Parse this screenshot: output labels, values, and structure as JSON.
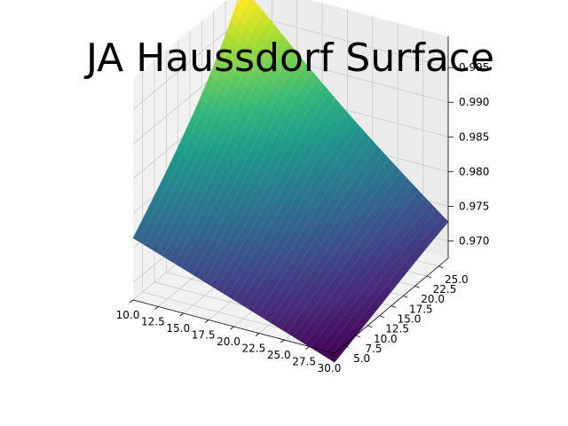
{
  "chart_data": {
    "type": "surface",
    "title": "JA Haussdorf Surface",
    "xlabel": "",
    "ylabel": "",
    "zlabel": "",
    "colormap": "viridis",
    "grid": true,
    "x": {
      "range": [
        10.0,
        30.0
      ],
      "ticks": [
        10.0,
        12.5,
        15.0,
        17.5,
        20.0,
        22.5,
        25.0,
        27.5,
        30.0
      ],
      "tick_labels": [
        "10.0",
        "12.5",
        "15.0",
        "17.5",
        "20.0",
        "22.5",
        "25.0",
        "27.5",
        "30.0"
      ]
    },
    "y": {
      "range": [
        3.0,
        27.0
      ],
      "ticks": [
        5.0,
        7.5,
        10.0,
        12.5,
        15.0,
        17.5,
        20.0,
        22.5,
        25.0
      ],
      "tick_labels": [
        "5.0",
        "7.5",
        "10.0",
        "12.5",
        "15.0",
        "17.5",
        "20.0",
        "22.5",
        "25.0"
      ]
    },
    "z": {
      "range": [
        0.9675,
        0.9995
      ],
      "ticks": [
        0.97,
        0.975,
        0.98,
        0.985,
        0.99,
        0.995
      ],
      "tick_labels": [
        "0.970",
        "0.975",
        "0.980",
        "0.985",
        "0.990",
        "0.995"
      ]
    },
    "surface": {
      "peak": {
        "x": 10,
        "y": 25,
        "z": 0.998
      },
      "corner_values": [
        {
          "x": 10,
          "y": 3,
          "z": 0.976
        },
        {
          "x": 30,
          "y": 3,
          "z": 0.966
        },
        {
          "x": 30,
          "y": 27,
          "z": 0.972
        },
        {
          "x": 10,
          "y": 27,
          "z": 0.993
        }
      ]
    }
  }
}
